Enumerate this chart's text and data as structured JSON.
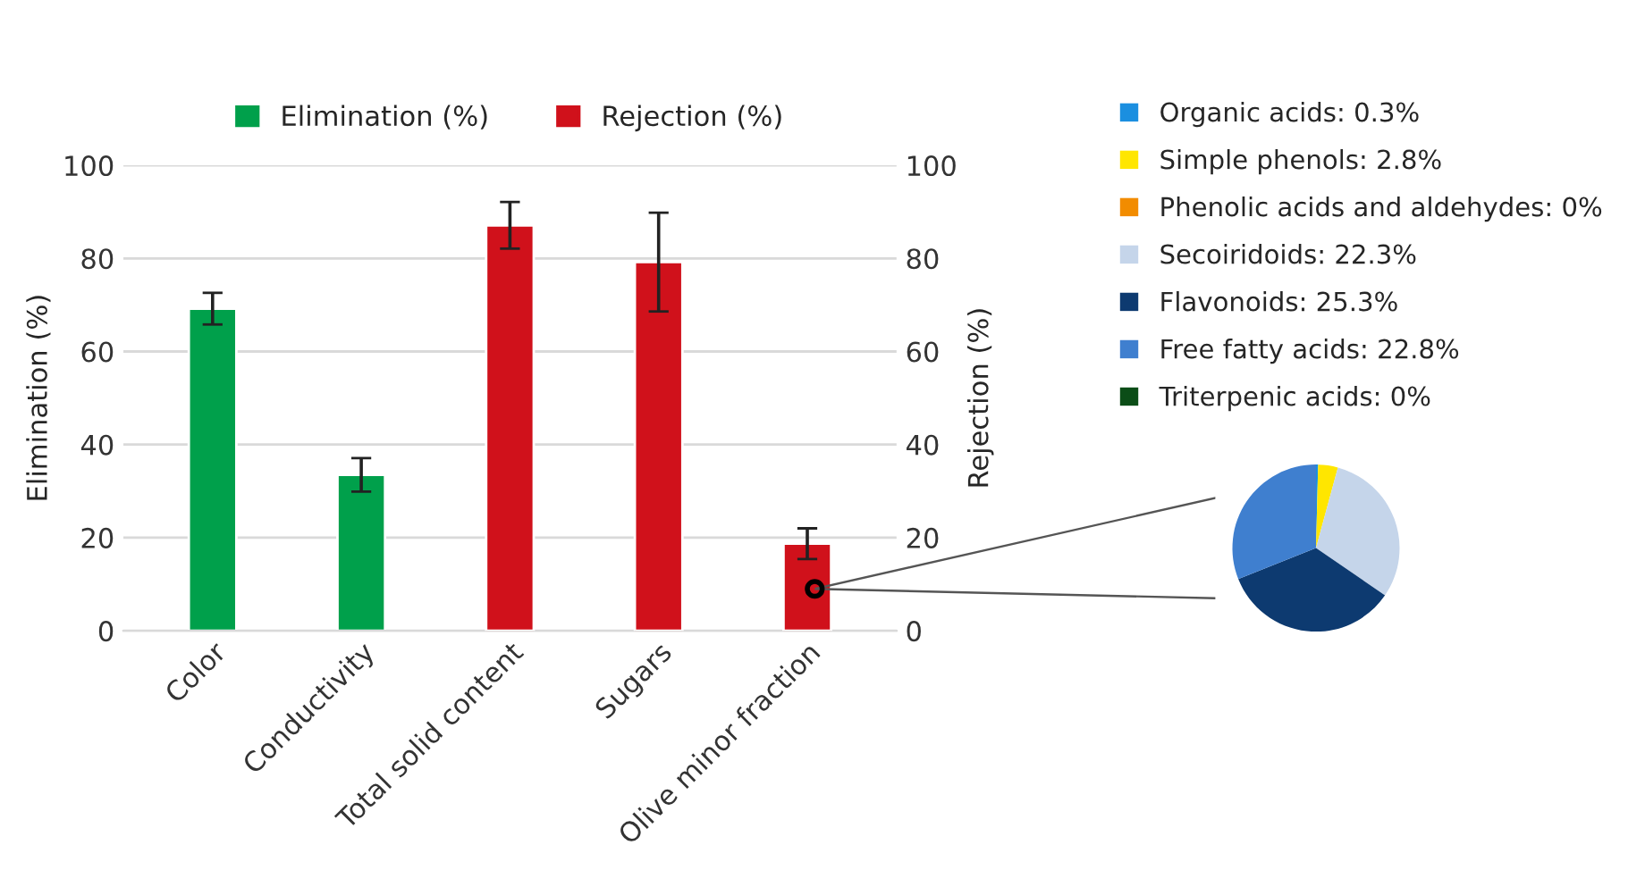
{
  "chart_data": [
    {
      "type": "bar",
      "categories": [
        "Color",
        "Conductivity",
        "Total solid content",
        "Sugars",
        "Olive minor fraction"
      ],
      "ylabel": "Elimination (%)",
      "y2label": "Rejection (%)",
      "ylim": [
        0,
        100
      ],
      "yticks": [
        0,
        20,
        40,
        60,
        80,
        100
      ],
      "y2lim": [
        0,
        100
      ],
      "y2ticks": [
        0,
        20,
        40,
        60,
        80,
        100
      ],
      "grid": "y",
      "legend": "top",
      "series": [
        {
          "name": "Elimination (%)",
          "color": "#00a04b",
          "values": [
            69.2,
            33.5,
            null,
            null,
            null
          ],
          "errors": [
            3.4,
            3.6,
            null,
            null,
            null
          ]
        },
        {
          "name": "Rejection (%)",
          "color": "#d0111b",
          "axis": "y2",
          "values": [
            null,
            null,
            87.1,
            79.2,
            18.7
          ],
          "errors": [
            null,
            null,
            5,
            10.6,
            3.3
          ]
        }
      ]
    },
    {
      "type": "pie",
      "legend": "top right",
      "categories": [
        "Organic acids: 0.3%",
        "Simple phenols: 2.8%",
        "Phenolic acids and aldehydes: 0%",
        "Secoiridoids: 22.3%",
        "Flavonoids: 25.3%",
        "Free fatty acids: 22.8%",
        "Triterpenic acids: 0%"
      ],
      "values": [
        0.3,
        2.8,
        0,
        22.3,
        25.3,
        22.8,
        0
      ],
      "colors": [
        "#1b8fe0",
        "#ffe600",
        "#f28c00",
        "#c5d5ea",
        "#0d3a70",
        "#3f7fcf",
        "#0b4d17"
      ]
    }
  ]
}
